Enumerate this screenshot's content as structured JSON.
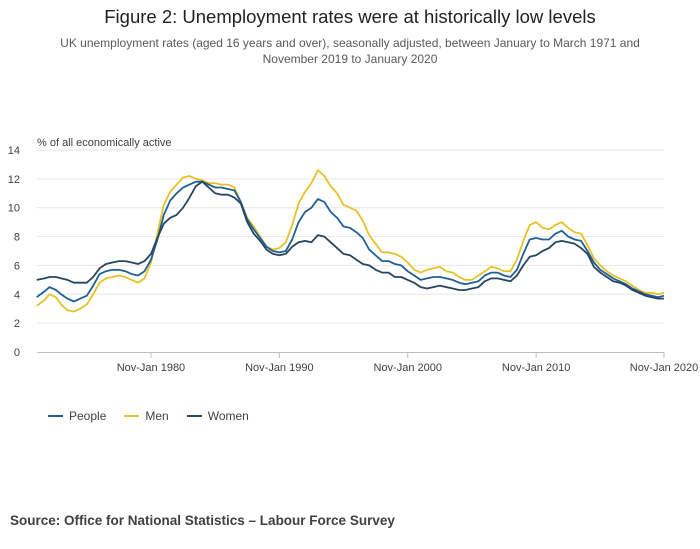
{
  "title": "Figure 2: Unemployment rates were at historically low levels",
  "subtitle": "UK unemployment rates (aged 16 years and over), seasonally adjusted, between January to March 1971 and November 2019 to January 2020",
  "source": "Source: Office for National Statistics – Labour Force Survey",
  "colors": {
    "people": "#206095",
    "men": "#E6C229",
    "women": "#27465F",
    "grid": "#E6E6E6",
    "axis": "#BEBEBE"
  },
  "chart_data": {
    "type": "line",
    "title": "Figure 2: Unemployment rates were at historically low levels",
    "ylabel": "% of all economically active",
    "xlabel": "",
    "ylim": [
      0,
      14
    ],
    "yticks": [
      "0",
      "2",
      "4",
      "6",
      "8",
      "10",
      "12",
      "14"
    ],
    "xlim": [
      1971.125,
      2019.958
    ],
    "xticks": [
      {
        "label": "Nov-Jan 1980",
        "value": 1980.0
      },
      {
        "label": "Nov-Jan 1990",
        "value": 1990.0
      },
      {
        "label": "Nov-Jan 2000",
        "value": 2000.0
      },
      {
        "label": "Nov-Jan 2010",
        "value": 2010.0
      },
      {
        "label": "Nov-Jan 2020",
        "value": 2019.958
      }
    ],
    "grid": true,
    "legend_position": "bottom-left",
    "series": [
      {
        "name": "People",
        "color": "#206095",
        "points": [
          [
            1971.1,
            3.8
          ],
          [
            1971.7,
            4.2
          ],
          [
            1972.1,
            4.5
          ],
          [
            1972.6,
            4.3
          ],
          [
            1973.0,
            4.0
          ],
          [
            1973.5,
            3.7
          ],
          [
            1974.0,
            3.5
          ],
          [
            1974.5,
            3.7
          ],
          [
            1975.0,
            3.9
          ],
          [
            1975.5,
            4.6
          ],
          [
            1976.0,
            5.4
          ],
          [
            1976.5,
            5.6
          ],
          [
            1977.0,
            5.7
          ],
          [
            1977.5,
            5.7
          ],
          [
            1978.0,
            5.6
          ],
          [
            1978.5,
            5.4
          ],
          [
            1979.0,
            5.3
          ],
          [
            1979.5,
            5.6
          ],
          [
            1980.0,
            6.4
          ],
          [
            1980.5,
            7.8
          ],
          [
            1981.0,
            9.5
          ],
          [
            1981.5,
            10.5
          ],
          [
            1982.0,
            11.0
          ],
          [
            1982.5,
            11.4
          ],
          [
            1983.0,
            11.6
          ],
          [
            1983.5,
            11.8
          ],
          [
            1984.0,
            11.8
          ],
          [
            1984.5,
            11.6
          ],
          [
            1985.0,
            11.4
          ],
          [
            1985.5,
            11.4
          ],
          [
            1986.0,
            11.3
          ],
          [
            1986.5,
            11.2
          ],
          [
            1987.0,
            10.4
          ],
          [
            1987.5,
            9.2
          ],
          [
            1988.0,
            8.5
          ],
          [
            1988.5,
            7.9
          ],
          [
            1989.0,
            7.3
          ],
          [
            1989.5,
            7.0
          ],
          [
            1990.0,
            6.9
          ],
          [
            1990.5,
            7.0
          ],
          [
            1991.0,
            7.8
          ],
          [
            1991.5,
            9.0
          ],
          [
            1992.0,
            9.7
          ],
          [
            1992.5,
            10.0
          ],
          [
            1993.0,
            10.6
          ],
          [
            1993.5,
            10.4
          ],
          [
            1994.0,
            9.7
          ],
          [
            1994.5,
            9.3
          ],
          [
            1995.0,
            8.7
          ],
          [
            1995.5,
            8.6
          ],
          [
            1996.0,
            8.3
          ],
          [
            1996.5,
            7.9
          ],
          [
            1997.0,
            7.1
          ],
          [
            1997.5,
            6.7
          ],
          [
            1998.0,
            6.3
          ],
          [
            1998.5,
            6.3
          ],
          [
            1999.0,
            6.1
          ],
          [
            1999.5,
            6.0
          ],
          [
            2000.0,
            5.6
          ],
          [
            2000.5,
            5.3
          ],
          [
            2001.0,
            5.0
          ],
          [
            2001.5,
            5.1
          ],
          [
            2002.0,
            5.2
          ],
          [
            2002.5,
            5.2
          ],
          [
            2003.0,
            5.1
          ],
          [
            2003.5,
            5.0
          ],
          [
            2004.0,
            4.8
          ],
          [
            2004.5,
            4.7
          ],
          [
            2005.0,
            4.8
          ],
          [
            2005.5,
            4.9
          ],
          [
            2006.0,
            5.3
          ],
          [
            2006.5,
            5.5
          ],
          [
            2007.0,
            5.5
          ],
          [
            2007.5,
            5.3
          ],
          [
            2008.0,
            5.2
          ],
          [
            2008.5,
            5.7
          ],
          [
            2009.0,
            6.8
          ],
          [
            2009.5,
            7.8
          ],
          [
            2010.0,
            7.9
          ],
          [
            2010.5,
            7.8
          ],
          [
            2011.0,
            7.8
          ],
          [
            2011.5,
            8.2
          ],
          [
            2012.0,
            8.4
          ],
          [
            2012.5,
            8.0
          ],
          [
            2013.0,
            7.8
          ],
          [
            2013.5,
            7.7
          ],
          [
            2014.0,
            7.0
          ],
          [
            2014.5,
            6.2
          ],
          [
            2015.0,
            5.7
          ],
          [
            2015.5,
            5.4
          ],
          [
            2016.0,
            5.1
          ],
          [
            2016.5,
            4.9
          ],
          [
            2017.0,
            4.7
          ],
          [
            2017.5,
            4.4
          ],
          [
            2018.0,
            4.2
          ],
          [
            2018.5,
            4.0
          ],
          [
            2019.0,
            3.9
          ],
          [
            2019.5,
            3.8
          ],
          [
            2019.96,
            3.9
          ]
        ]
      },
      {
        "name": "Men",
        "color": "#E6C229",
        "points": [
          [
            1971.1,
            3.2
          ],
          [
            1971.7,
            3.6
          ],
          [
            1972.1,
            4.0
          ],
          [
            1972.6,
            3.8
          ],
          [
            1973.0,
            3.3
          ],
          [
            1973.5,
            2.9
          ],
          [
            1974.0,
            2.8
          ],
          [
            1974.5,
            3.0
          ],
          [
            1975.0,
            3.3
          ],
          [
            1975.5,
            4.0
          ],
          [
            1976.0,
            4.8
          ],
          [
            1976.5,
            5.1
          ],
          [
            1977.0,
            5.2
          ],
          [
            1977.5,
            5.3
          ],
          [
            1978.0,
            5.2
          ],
          [
            1978.5,
            5.0
          ],
          [
            1979.0,
            4.8
          ],
          [
            1979.5,
            5.1
          ],
          [
            1980.0,
            6.2
          ],
          [
            1980.5,
            8.2
          ],
          [
            1981.0,
            10.2
          ],
          [
            1981.5,
            11.1
          ],
          [
            1982.0,
            11.6
          ],
          [
            1982.5,
            12.1
          ],
          [
            1983.0,
            12.2
          ],
          [
            1983.5,
            12.0
          ],
          [
            1984.0,
            11.9
          ],
          [
            1984.5,
            11.7
          ],
          [
            1985.0,
            11.7
          ],
          [
            1985.5,
            11.6
          ],
          [
            1986.0,
            11.6
          ],
          [
            1986.5,
            11.4
          ],
          [
            1987.0,
            10.4
          ],
          [
            1987.5,
            9.3
          ],
          [
            1988.0,
            8.7
          ],
          [
            1988.5,
            8.0
          ],
          [
            1989.0,
            7.3
          ],
          [
            1989.5,
            7.1
          ],
          [
            1990.0,
            7.2
          ],
          [
            1990.5,
            7.6
          ],
          [
            1991.0,
            8.8
          ],
          [
            1991.5,
            10.3
          ],
          [
            1992.0,
            11.1
          ],
          [
            1992.5,
            11.7
          ],
          [
            1993.0,
            12.6
          ],
          [
            1993.5,
            12.2
          ],
          [
            1994.0,
            11.5
          ],
          [
            1994.5,
            11.0
          ],
          [
            1995.0,
            10.2
          ],
          [
            1995.5,
            10.0
          ],
          [
            1996.0,
            9.8
          ],
          [
            1996.5,
            9.1
          ],
          [
            1997.0,
            8.1
          ],
          [
            1997.5,
            7.5
          ],
          [
            1998.0,
            6.9
          ],
          [
            1998.5,
            6.9
          ],
          [
            1999.0,
            6.8
          ],
          [
            1999.5,
            6.6
          ],
          [
            2000.0,
            6.2
          ],
          [
            2000.5,
            5.7
          ],
          [
            2001.0,
            5.5
          ],
          [
            2001.5,
            5.7
          ],
          [
            2002.0,
            5.8
          ],
          [
            2002.5,
            5.9
          ],
          [
            2003.0,
            5.6
          ],
          [
            2003.5,
            5.5
          ],
          [
            2004.0,
            5.2
          ],
          [
            2004.5,
            5.0
          ],
          [
            2005.0,
            5.0
          ],
          [
            2005.5,
            5.3
          ],
          [
            2006.0,
            5.6
          ],
          [
            2006.5,
            5.9
          ],
          [
            2007.0,
            5.8
          ],
          [
            2007.5,
            5.6
          ],
          [
            2008.0,
            5.6
          ],
          [
            2008.5,
            6.4
          ],
          [
            2009.0,
            7.7
          ],
          [
            2009.5,
            8.8
          ],
          [
            2010.0,
            9.0
          ],
          [
            2010.5,
            8.6
          ],
          [
            2011.0,
            8.5
          ],
          [
            2011.5,
            8.8
          ],
          [
            2012.0,
            9.0
          ],
          [
            2012.5,
            8.6
          ],
          [
            2013.0,
            8.3
          ],
          [
            2013.5,
            8.2
          ],
          [
            2014.0,
            7.4
          ],
          [
            2014.5,
            6.5
          ],
          [
            2015.0,
            6.0
          ],
          [
            2015.5,
            5.6
          ],
          [
            2016.0,
            5.3
          ],
          [
            2016.5,
            5.1
          ],
          [
            2017.0,
            4.9
          ],
          [
            2017.5,
            4.6
          ],
          [
            2018.0,
            4.3
          ],
          [
            2018.5,
            4.1
          ],
          [
            2019.0,
            4.1
          ],
          [
            2019.5,
            4.0
          ],
          [
            2019.96,
            4.1
          ]
        ]
      },
      {
        "name": "Women",
        "color": "#27465F",
        "points": [
          [
            1971.1,
            5.0
          ],
          [
            1971.7,
            5.1
          ],
          [
            1972.1,
            5.2
          ],
          [
            1972.6,
            5.2
          ],
          [
            1973.0,
            5.1
          ],
          [
            1973.5,
            5.0
          ],
          [
            1974.0,
            4.8
          ],
          [
            1974.5,
            4.8
          ],
          [
            1975.0,
            4.8
          ],
          [
            1975.5,
            5.2
          ],
          [
            1976.0,
            5.8
          ],
          [
            1976.5,
            6.1
          ],
          [
            1977.0,
            6.2
          ],
          [
            1977.5,
            6.3
          ],
          [
            1978.0,
            6.3
          ],
          [
            1978.5,
            6.2
          ],
          [
            1979.0,
            6.1
          ],
          [
            1979.5,
            6.3
          ],
          [
            1980.0,
            6.8
          ],
          [
            1980.5,
            7.9
          ],
          [
            1981.0,
            8.9
          ],
          [
            1981.5,
            9.3
          ],
          [
            1982.0,
            9.5
          ],
          [
            1982.5,
            10.0
          ],
          [
            1983.0,
            10.7
          ],
          [
            1983.5,
            11.5
          ],
          [
            1984.0,
            11.8
          ],
          [
            1984.5,
            11.4
          ],
          [
            1985.0,
            11.0
          ],
          [
            1985.5,
            10.9
          ],
          [
            1986.0,
            10.9
          ],
          [
            1986.5,
            10.7
          ],
          [
            1987.0,
            10.3
          ],
          [
            1987.5,
            9.0
          ],
          [
            1988.0,
            8.2
          ],
          [
            1988.5,
            7.7
          ],
          [
            1989.0,
            7.1
          ],
          [
            1989.5,
            6.8
          ],
          [
            1990.0,
            6.7
          ],
          [
            1990.5,
            6.8
          ],
          [
            1991.0,
            7.3
          ],
          [
            1991.5,
            7.6
          ],
          [
            1992.0,
            7.7
          ],
          [
            1992.5,
            7.6
          ],
          [
            1993.0,
            8.1
          ],
          [
            1993.5,
            8.0
          ],
          [
            1994.0,
            7.6
          ],
          [
            1994.5,
            7.2
          ],
          [
            1995.0,
            6.8
          ],
          [
            1995.5,
            6.7
          ],
          [
            1996.0,
            6.4
          ],
          [
            1996.5,
            6.1
          ],
          [
            1997.0,
            6.0
          ],
          [
            1997.5,
            5.7
          ],
          [
            1998.0,
            5.5
          ],
          [
            1998.5,
            5.5
          ],
          [
            1999.0,
            5.2
          ],
          [
            1999.5,
            5.2
          ],
          [
            2000.0,
            5.0
          ],
          [
            2000.5,
            4.8
          ],
          [
            2001.0,
            4.5
          ],
          [
            2001.5,
            4.4
          ],
          [
            2002.0,
            4.5
          ],
          [
            2002.5,
            4.6
          ],
          [
            2003.0,
            4.5
          ],
          [
            2003.5,
            4.4
          ],
          [
            2004.0,
            4.3
          ],
          [
            2004.5,
            4.3
          ],
          [
            2005.0,
            4.4
          ],
          [
            2005.5,
            4.5
          ],
          [
            2006.0,
            4.9
          ],
          [
            2006.5,
            5.1
          ],
          [
            2007.0,
            5.1
          ],
          [
            2007.5,
            5.0
          ],
          [
            2008.0,
            4.9
          ],
          [
            2008.5,
            5.3
          ],
          [
            2009.0,
            6.0
          ],
          [
            2009.5,
            6.6
          ],
          [
            2010.0,
            6.7
          ],
          [
            2010.5,
            7.0
          ],
          [
            2011.0,
            7.2
          ],
          [
            2011.5,
            7.6
          ],
          [
            2012.0,
            7.7
          ],
          [
            2012.5,
            7.6
          ],
          [
            2013.0,
            7.5
          ],
          [
            2013.5,
            7.2
          ],
          [
            2014.0,
            6.8
          ],
          [
            2014.5,
            5.9
          ],
          [
            2015.0,
            5.5
          ],
          [
            2015.5,
            5.2
          ],
          [
            2016.0,
            4.9
          ],
          [
            2016.5,
            4.8
          ],
          [
            2017.0,
            4.6
          ],
          [
            2017.5,
            4.3
          ],
          [
            2018.0,
            4.1
          ],
          [
            2018.5,
            3.9
          ],
          [
            2019.0,
            3.8
          ],
          [
            2019.5,
            3.7
          ],
          [
            2019.96,
            3.7
          ]
        ]
      }
    ]
  }
}
